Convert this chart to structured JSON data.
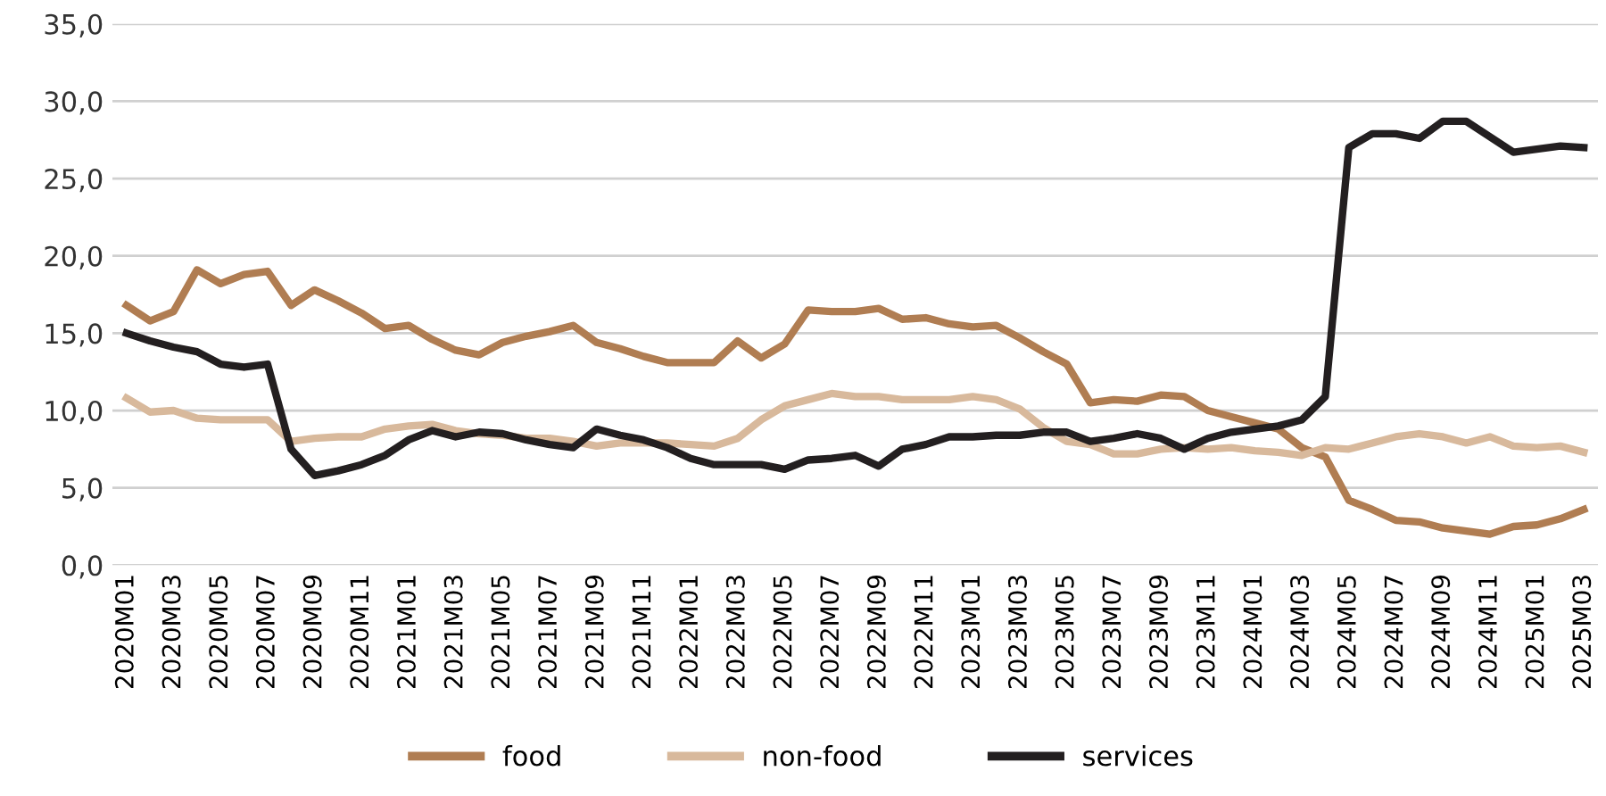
{
  "chart_data": {
    "type": "line",
    "categories": [
      "2020M01",
      null,
      "2020M03",
      null,
      "2020M05",
      null,
      "2020M07",
      null,
      "2020M09",
      null,
      "2020M11",
      null,
      "2021M01",
      null,
      "2021M03",
      null,
      "2021M05",
      null,
      "2021M07",
      null,
      "2021M09",
      null,
      "2021M11",
      null,
      "2022M01",
      null,
      "2022M03",
      null,
      "2022M05",
      null,
      "2022M07",
      null,
      "2022M09",
      null,
      "2022M11",
      null,
      "2023M01",
      null,
      "2023M03",
      null,
      "2023M05",
      null,
      "2023M07",
      null,
      "2023M09",
      null,
      "2023M11",
      null,
      "2024M01",
      null,
      "2024M03",
      null,
      "2024M05",
      null,
      "2024M07",
      null,
      "2024M09",
      null,
      "2024M11",
      null,
      "2025M01",
      null,
      "2025M03"
    ],
    "series": [
      {
        "name": "food",
        "color": "#b07d52",
        "values": [
          16.8,
          15.8,
          16.4,
          19.1,
          18.2,
          18.8,
          19.0,
          16.8,
          17.8,
          17.1,
          16.3,
          15.3,
          15.5,
          14.6,
          13.9,
          13.6,
          14.4,
          14.8,
          15.1,
          15.5,
          14.4,
          14.0,
          13.5,
          13.1,
          13.1,
          13.1,
          14.5,
          13.4,
          14.3,
          16.5,
          16.4,
          16.4,
          16.6,
          15.9,
          16.0,
          15.6,
          15.4,
          15.5,
          14.7,
          13.8,
          13.0,
          10.5,
          10.7,
          10.6,
          11.0,
          10.9,
          10.0,
          9.6,
          9.2,
          8.8,
          7.6,
          7.0,
          4.2,
          3.6,
          2.9,
          2.8,
          2.4,
          2.2,
          2.0,
          2.5,
          2.6,
          3.0,
          3.6
        ]
      },
      {
        "name": "non-food",
        "color": "#d8b99c",
        "values": [
          10.8,
          9.9,
          10.0,
          9.5,
          9.4,
          9.4,
          9.4,
          8.0,
          8.2,
          8.3,
          8.3,
          8.8,
          9.0,
          9.1,
          8.7,
          8.5,
          8.4,
          8.2,
          8.2,
          8.0,
          7.7,
          7.9,
          7.9,
          7.9,
          7.8,
          7.7,
          8.2,
          9.4,
          10.3,
          10.7,
          11.1,
          10.9,
          10.9,
          10.7,
          10.7,
          10.7,
          10.9,
          10.7,
          10.1,
          8.9,
          8.0,
          7.8,
          7.2,
          7.2,
          7.5,
          7.6,
          7.5,
          7.6,
          7.4,
          7.3,
          7.1,
          7.6,
          7.5,
          7.9,
          8.3,
          8.5,
          8.3,
          7.9,
          8.3,
          7.7,
          7.6,
          7.7,
          7.3
        ]
      },
      {
        "name": "services",
        "color": "#231f20",
        "values": [
          15.0,
          14.5,
          14.1,
          13.8,
          13.0,
          12.8,
          13.0,
          7.5,
          5.8,
          6.1,
          6.5,
          7.1,
          8.1,
          8.7,
          8.3,
          8.6,
          8.5,
          8.1,
          7.8,
          7.6,
          8.8,
          8.4,
          8.1,
          7.6,
          6.9,
          6.5,
          6.5,
          6.5,
          6.2,
          6.8,
          6.9,
          7.1,
          6.4,
          7.5,
          7.8,
          8.3,
          8.3,
          8.4,
          8.4,
          8.6,
          8.6,
          8.0,
          8.2,
          8.5,
          8.2,
          7.5,
          8.2,
          8.6,
          8.8,
          9.0,
          9.4,
          10.9,
          27.0,
          27.9,
          27.9,
          27.6,
          28.7,
          28.7,
          27.7,
          26.7,
          26.9,
          27.1,
          27.0
        ]
      }
    ],
    "ylim": [
      0,
      35
    ],
    "yticks": [
      {
        "value": 0,
        "label": "0,0"
      },
      {
        "value": 5,
        "label": "5,0"
      },
      {
        "value": 10,
        "label": "10,0"
      },
      {
        "value": 15,
        "label": "15,0"
      },
      {
        "value": 20,
        "label": "20,0"
      },
      {
        "value": 25,
        "label": "25,0"
      },
      {
        "value": 30,
        "label": "30,0"
      },
      {
        "value": 35,
        "label": "35,0"
      }
    ],
    "grid": "y",
    "legend": "bottom",
    "marker": "none",
    "line_style": "solid"
  }
}
